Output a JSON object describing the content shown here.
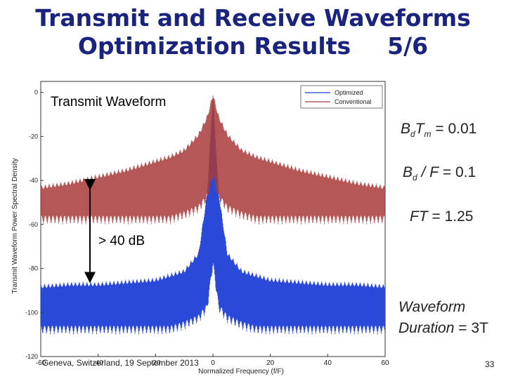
{
  "slide": {
    "title_line1": "Transmit and Receive Waveforms",
    "title_line2": "Optimization Results",
    "page_fraction": "5/6",
    "footer_text": "Geneva, Switzerland, 19 September 2013",
    "page_number": "33",
    "accent_color": "#1a237e"
  },
  "annotations": {
    "plot_title": "Transmit Waveform",
    "gap_label": "> 40 dB"
  },
  "formulas": {
    "bdtm": {
      "lhs_main": "B",
      "lhs_sub": "d",
      "lhs_main2": "T",
      "lhs_sub2": "m",
      "rhs": "= 0.01"
    },
    "bdf": {
      "lhs_main": "B",
      "lhs_sub": "d",
      "mid": "/ F",
      "rhs": "= 0.1"
    },
    "ft": {
      "lhs": "FT",
      "rhs": "= 1.25"
    },
    "duration": {
      "line1": "Waveform",
      "line2_word": "Duration",
      "rhs": "= 3T"
    }
  },
  "chart_data": {
    "type": "line",
    "xlabel": "Normalized Frequency (f/F)",
    "ylabel": "Transmit Waveform Power Spectral Density",
    "xlim": [
      -60,
      60
    ],
    "ylim": [
      -120,
      5
    ],
    "xticks": [
      -60,
      -40,
      -20,
      0,
      20,
      40,
      60
    ],
    "yticks": [
      0,
      -20,
      -40,
      -60,
      -80,
      -100,
      -120
    ],
    "legend_position": "top-right",
    "series": [
      {
        "name": "Optimized",
        "color": "#1f3fd6",
        "x": [
          -60,
          -50,
          -40,
          -30,
          -20,
          -15,
          -10,
          -5,
          -2,
          0,
          2,
          5,
          10,
          15,
          20,
          30,
          40,
          50,
          60
        ],
        "upper": [
          -87,
          -86,
          -86,
          -85,
          -84,
          -82,
          -80,
          -72,
          -45,
          0,
          -45,
          -72,
          -80,
          -82,
          -84,
          -85,
          -86,
          -86,
          -87
        ],
        "lower": [
          -110,
          -110,
          -110,
          -110,
          -110,
          -110,
          -108,
          -105,
          -100,
          -80,
          -100,
          -105,
          -108,
          -110,
          -110,
          -110,
          -110,
          -110,
          -110
        ]
      },
      {
        "name": "Conventional",
        "color": "#a83a3a",
        "x": [
          -60,
          -50,
          -40,
          -30,
          -20,
          -15,
          -10,
          -5,
          -2,
          0,
          2,
          5,
          10,
          15,
          20,
          30,
          40,
          50,
          60
        ],
        "upper": [
          -42,
          -40,
          -37,
          -34,
          -30,
          -28,
          -25,
          -18,
          -10,
          0,
          -10,
          -18,
          -25,
          -28,
          -30,
          -34,
          -37,
          -40,
          -42
        ],
        "lower": [
          -60,
          -60,
          -60,
          -60,
          -60,
          -60,
          -58,
          -55,
          -50,
          -40,
          -50,
          -55,
          -58,
          -60,
          -60,
          -60,
          -60,
          -60,
          -60
        ]
      }
    ]
  }
}
